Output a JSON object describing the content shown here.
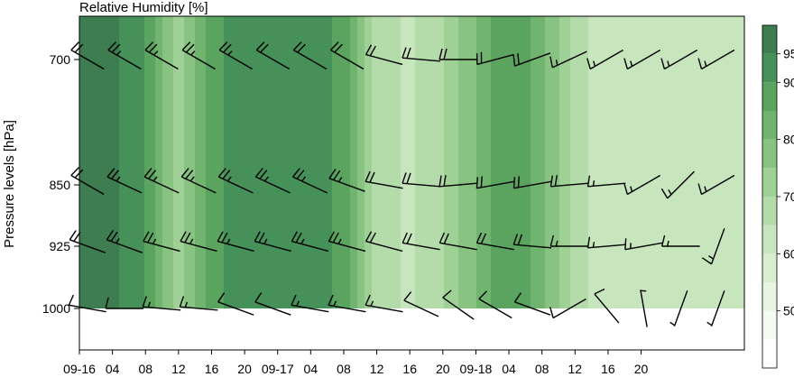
{
  "chart_data": {
    "type": "contour",
    "title": "Relative Humidity [%]",
    "ylabel": "Pressure levels [hPa]",
    "xlabel": "",
    "y_scale": "pressure",
    "ylim": [
      1000,
      625
    ],
    "pressure_ticks": [
      700,
      850,
      925,
      1000
    ],
    "x_hours_range": [
      0,
      77
    ],
    "x_ticks": [
      {
        "label": "09-16",
        "hour": 0
      },
      {
        "label": "04",
        "hour": 4
      },
      {
        "label": "08",
        "hour": 8
      },
      {
        "label": "12",
        "hour": 12
      },
      {
        "label": "16",
        "hour": 16
      },
      {
        "label": "20",
        "hour": 20
      },
      {
        "label": "09-17",
        "hour": 24
      },
      {
        "label": "04",
        "hour": 28
      },
      {
        "label": "08",
        "hour": 32
      },
      {
        "label": "12",
        "hour": 36
      },
      {
        "label": "16",
        "hour": 40
      },
      {
        "label": "20",
        "hour": 44
      },
      {
        "label": "09-18",
        "hour": 48
      },
      {
        "label": "04",
        "hour": 52
      },
      {
        "label": "08",
        "hour": 56
      },
      {
        "label": "12",
        "hour": 60
      },
      {
        "label": "16",
        "hour": 64
      },
      {
        "label": "20",
        "hour": 68
      }
    ],
    "colorbar": {
      "levels": [
        40,
        45,
        50,
        55,
        60,
        65,
        70,
        75,
        80,
        85,
        90,
        95,
        100
      ],
      "tick_labels": [
        "50",
        "60",
        "70",
        "80",
        "90",
        "95"
      ],
      "tick_values": [
        50,
        60,
        70,
        80,
        90,
        95
      ],
      "colors": [
        "#ffffff",
        "#f4fbf1",
        "#e7f5e2",
        "#d8eecf",
        "#c7e6bd",
        "#b4dcaa",
        "#9fd196",
        "#88c382",
        "#71b46f",
        "#5aa45f",
        "#46915a",
        "#3d7d50"
      ]
    },
    "grid": false,
    "rh_field": {
      "pressure_levels": [
        1000,
        925,
        850,
        800,
        750,
        700,
        650
      ],
      "hours": [
        0,
        4,
        8,
        12,
        16,
        20,
        24,
        28,
        32,
        36,
        40,
        44,
        48,
        52,
        56,
        60,
        64,
        68,
        72,
        76
      ],
      "values": [
        [
          96,
          96,
          90,
          72,
          88,
          94,
          95,
          93,
          88,
          68,
          64,
          70,
          80,
          90,
          82,
          68,
          60,
          64,
          60,
          60
        ],
        [
          90,
          90,
          92,
          86,
          88,
          90,
          90,
          88,
          84,
          72,
          68,
          70,
          78,
          82,
          78,
          74,
          70,
          72,
          72,
          72
        ],
        [
          80,
          82,
          84,
          80,
          80,
          80,
          80,
          78,
          76,
          70,
          70,
          72,
          80,
          86,
          82,
          78,
          74,
          76,
          76,
          76
        ],
        [
          76,
          76,
          74,
          74,
          74,
          74,
          72,
          70,
          70,
          68,
          66,
          72,
          86,
          90,
          84,
          76,
          70,
          70,
          70,
          70
        ],
        [
          72,
          66,
          72,
          72,
          72,
          70,
          68,
          64,
          62,
          60,
          58,
          66,
          76,
          78,
          74,
          66,
          64,
          64,
          66,
          66
        ],
        [
          72,
          72,
          74,
          72,
          74,
          72,
          70,
          62,
          58,
          56,
          56,
          62,
          70,
          70,
          68,
          62,
          60,
          62,
          62,
          62
        ],
        [
          74,
          72,
          72,
          70,
          72,
          70,
          66,
          58,
          52,
          48,
          50,
          54,
          60,
          60,
          56,
          54,
          58,
          60,
          60,
          60
        ]
      ]
    },
    "wind_barbs": {
      "units": "kt",
      "levels": [
        {
          "pressure": 700,
          "barbs": [
            {
              "dir": 300,
              "spd": 20
            },
            {
              "dir": 300,
              "spd": 25
            },
            {
              "dir": 300,
              "spd": 25
            },
            {
              "dir": 300,
              "spd": 25
            },
            {
              "dir": 300,
              "spd": 25
            },
            {
              "dir": 300,
              "spd": 20
            },
            {
              "dir": 300,
              "spd": 20
            },
            {
              "dir": 300,
              "spd": 20
            },
            {
              "dir": 285,
              "spd": 20
            },
            {
              "dir": 275,
              "spd": 20
            },
            {
              "dir": 270,
              "spd": 20
            },
            {
              "dir": 255,
              "spd": 20
            },
            {
              "dir": 250,
              "spd": 20
            },
            {
              "dir": 245,
              "spd": 15
            },
            {
              "dir": 240,
              "spd": 15
            },
            {
              "dir": 240,
              "spd": 15
            },
            {
              "dir": 240,
              "spd": 15
            },
            {
              "dir": 240,
              "spd": 15
            }
          ]
        },
        {
          "pressure": 850,
          "barbs": [
            {
              "dir": 300,
              "spd": 20
            },
            {
              "dir": 295,
              "spd": 25
            },
            {
              "dir": 295,
              "spd": 25
            },
            {
              "dir": 295,
              "spd": 25
            },
            {
              "dir": 295,
              "spd": 25
            },
            {
              "dir": 295,
              "spd": 25
            },
            {
              "dir": 295,
              "spd": 25
            },
            {
              "dir": 290,
              "spd": 25
            },
            {
              "dir": 280,
              "spd": 20
            },
            {
              "dir": 275,
              "spd": 20
            },
            {
              "dir": 265,
              "spd": 20
            },
            {
              "dir": 260,
              "spd": 20
            },
            {
              "dir": 260,
              "spd": 20
            },
            {
              "dir": 265,
              "spd": 20
            },
            {
              "dir": 265,
              "spd": 15
            },
            {
              "dir": 240,
              "spd": 15
            },
            {
              "dir": 225,
              "spd": 15
            },
            {
              "dir": 240,
              "spd": 15
            }
          ]
        },
        {
          "pressure": 925,
          "barbs": [
            {
              "dir": 290,
              "spd": 20
            },
            {
              "dir": 290,
              "spd": 25
            },
            {
              "dir": 285,
              "spd": 25
            },
            {
              "dir": 285,
              "spd": 25
            },
            {
              "dir": 285,
              "spd": 25
            },
            {
              "dir": 285,
              "spd": 25
            },
            {
              "dir": 285,
              "spd": 25
            },
            {
              "dir": 285,
              "spd": 25
            },
            {
              "dir": 285,
              "spd": 20
            },
            {
              "dir": 280,
              "spd": 20
            },
            {
              "dir": 280,
              "spd": 20
            },
            {
              "dir": 280,
              "spd": 20
            },
            {
              "dir": 275,
              "spd": 20
            },
            {
              "dir": 270,
              "spd": 15
            },
            {
              "dir": 265,
              "spd": 15
            },
            {
              "dir": 260,
              "spd": 15
            },
            {
              "dir": 270,
              "spd": 15
            },
            {
              "dir": 200,
              "spd": 15
            }
          ]
        },
        {
          "pressure": 1000,
          "barbs": [
            {
              "dir": 280,
              "spd": 10
            },
            {
              "dir": 270,
              "spd": 10
            },
            {
              "dir": 275,
              "spd": 15
            },
            {
              "dir": 275,
              "spd": 15
            },
            {
              "dir": 290,
              "spd": 10
            },
            {
              "dir": 290,
              "spd": 10
            },
            {
              "dir": 280,
              "spd": 15
            },
            {
              "dir": 280,
              "spd": 15
            },
            {
              "dir": 280,
              "spd": 15
            },
            {
              "dir": 295,
              "spd": 10
            },
            {
              "dir": 305,
              "spd": 10
            },
            {
              "dir": 300,
              "spd": 10
            },
            {
              "dir": 290,
              "spd": 10
            },
            {
              "dir": 240,
              "spd": 10
            },
            {
              "dir": 320,
              "spd": 10
            },
            {
              "dir": 350,
              "spd": 5
            },
            {
              "dir": 200,
              "spd": 5
            },
            {
              "dir": 200,
              "spd": 5
            }
          ]
        }
      ]
    }
  }
}
